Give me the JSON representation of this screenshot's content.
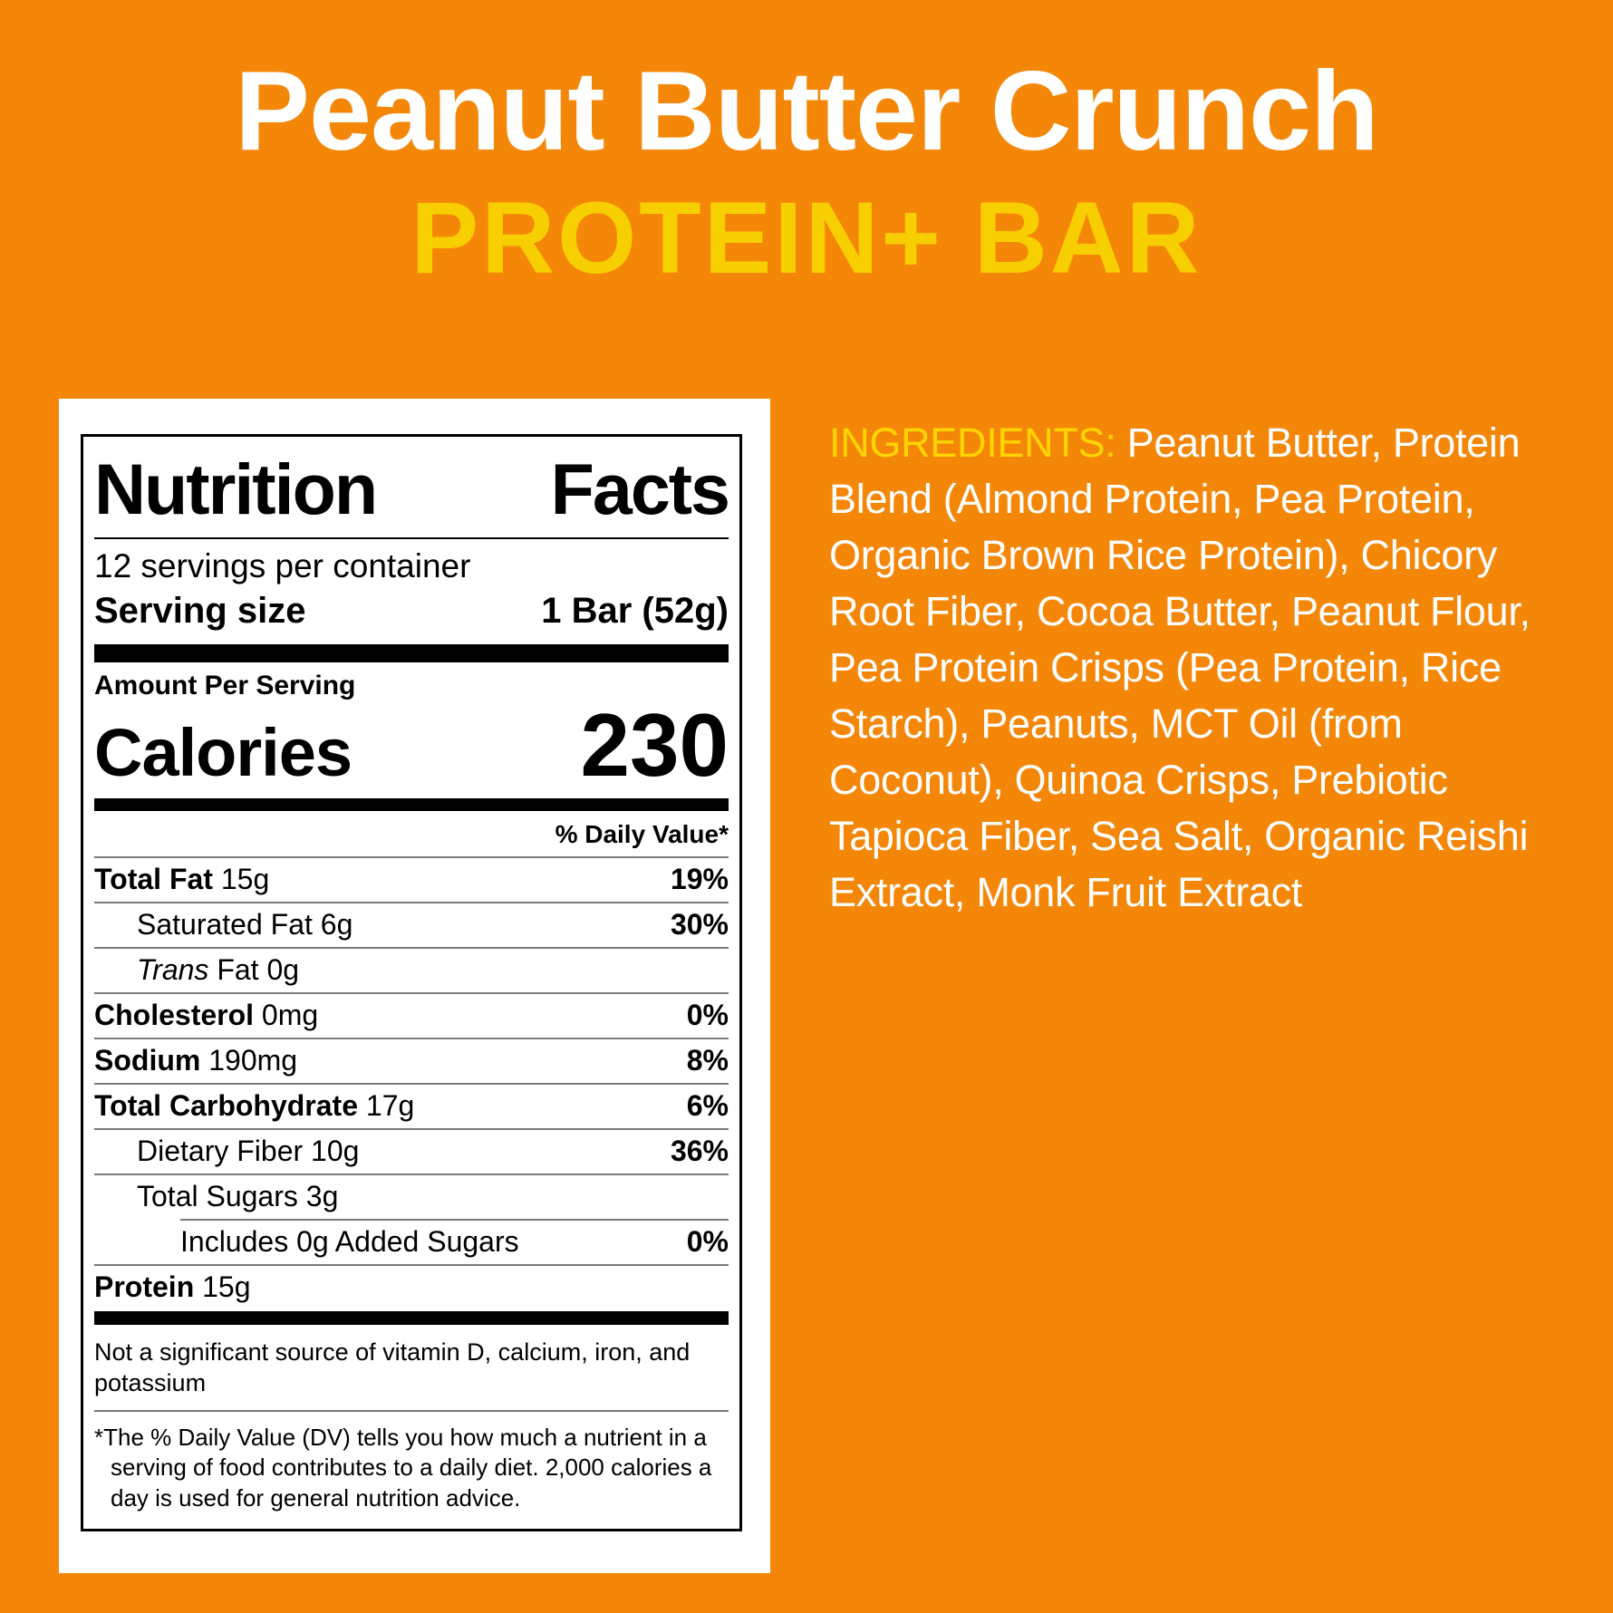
{
  "colors": {
    "background_orange": "#F48708",
    "title_white": "#FFFFFF",
    "subtitle_yellow": "#F7CF00",
    "ingredients_label_yellow": "#FFD400",
    "label_black": "#000000"
  },
  "header": {
    "title": "Peanut Butter Crunch",
    "subtitle": "PROTEIN+ BAR"
  },
  "nutrition_label": {
    "title_word1": "Nutrition",
    "title_word2": "Facts",
    "servings_per_container": "12 servings per container",
    "serving_size_label": "Serving size",
    "serving_size_value": "1 Bar (52g)",
    "amount_per_serving": "Amount Per Serving",
    "calories_label": "Calories",
    "calories_value": "230",
    "daily_value_header": "% Daily Value*",
    "rows": [
      {
        "bold": "Total Fat",
        "text": " 15g",
        "dv": "19%",
        "indent": 0
      },
      {
        "text": "Saturated Fat 6g",
        "dv": "30%",
        "indent": 1
      },
      {
        "italic": "Trans",
        "text": " Fat 0g",
        "dv": "",
        "indent": 1
      },
      {
        "bold": "Cholesterol",
        "text": " 0mg",
        "dv": "0%",
        "indent": 0
      },
      {
        "bold": "Sodium",
        "text": " 190mg",
        "dv": "8%",
        "indent": 0
      },
      {
        "bold": "Total Carbohydrate",
        "text": " 17g",
        "dv": "6%",
        "indent": 0
      },
      {
        "text": "Dietary Fiber 10g",
        "dv": "36%",
        "indent": 1
      },
      {
        "text": "Total Sugars 3g",
        "dv": "",
        "indent": 1
      },
      {
        "text": "Includes 0g Added Sugars",
        "dv": "0%",
        "indent": 2,
        "inset": true
      },
      {
        "bold": "Protein",
        "text": " 15g",
        "dv": "",
        "indent": 0
      }
    ],
    "not_significant": "Not a significant source of vitamin D, calcium, iron, and potassium",
    "footnote_marker": "*",
    "footnote": "The % Daily Value (DV) tells you how much a nutrient in a serving of food contributes to a daily diet. 2,000 calories a day is used for general nutrition advice."
  },
  "ingredients": {
    "label": "INGREDIENTS:",
    "text": " Peanut Butter, Protein Blend (Almond Protein, Pea Protein, Organic Brown Rice Protein), Chicory Root Fiber, Cocoa Butter, Peanut Flour, Pea Protein Crisps (Pea Protein, Rice Starch), Peanuts, MCT Oil (from Coconut), Quinoa Crisps, Prebiotic Tapioca Fiber, Sea Salt, Organic Reishi Extract, Monk Fruit Extract"
  }
}
